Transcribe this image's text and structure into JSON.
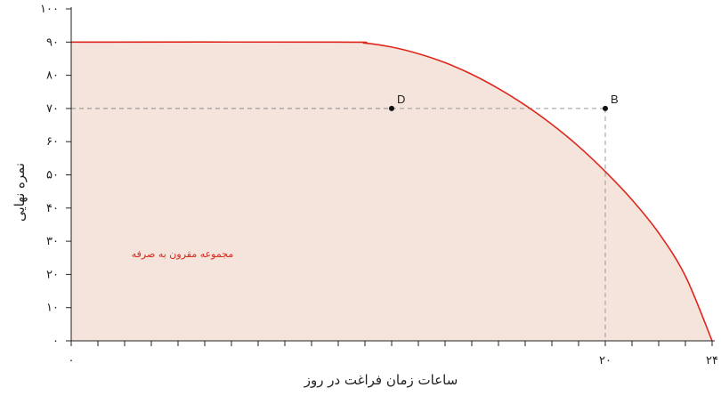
{
  "chart_data": {
    "type": "area",
    "xlabel": "ساعات زمان فراغت در روز",
    "ylabel": "نمره نهایی",
    "xlim": [
      0,
      24
    ],
    "ylim": [
      0,
      100
    ],
    "x_tick_labels": [
      {
        "x": 0,
        "label": "۰"
      },
      {
        "x": 20,
        "label": "۲۰"
      },
      {
        "x": 24,
        "label": "۲۴"
      }
    ],
    "y_tick_labels": [
      {
        "y": 0,
        "label": "۰"
      },
      {
        "y": 10,
        "label": "۱۰"
      },
      {
        "y": 20,
        "label": "۲۰"
      },
      {
        "y": 30,
        "label": "۳۰"
      },
      {
        "y": 40,
        "label": "۴۰"
      },
      {
        "y": 50,
        "label": "۵۰"
      },
      {
        "y": 60,
        "label": "۶۰"
      },
      {
        "y": 70,
        "label": "۷۰"
      },
      {
        "y": 80,
        "label": "۸۰"
      },
      {
        "y": 90,
        "label": "۹۰"
      },
      {
        "y": 100,
        "label": "۱۰۰"
      }
    ],
    "x_minor_ticks": 24,
    "frontier": {
      "x": [
        0,
        10,
        11,
        12,
        13,
        14,
        15,
        16,
        17,
        18,
        19,
        20,
        21,
        22,
        23,
        24
      ],
      "y": [
        90,
        90,
        89.7,
        88.5,
        86.5,
        83.8,
        80.3,
        76.0,
        71.0,
        65.2,
        58.6,
        51.0,
        42.5,
        32.5,
        19.5,
        0
      ]
    },
    "region_label": "مجموعه مقرون به صرفه",
    "points": [
      {
        "label": "D",
        "x": 12,
        "y": 70
      },
      {
        "label": "B",
        "x": 20,
        "y": 70
      }
    ],
    "colors": {
      "frontier": "#e0261b",
      "fill": "#f5e4dc",
      "region_label": "#d42a1e",
      "guide": "#999999",
      "axis": "#222222"
    }
  }
}
